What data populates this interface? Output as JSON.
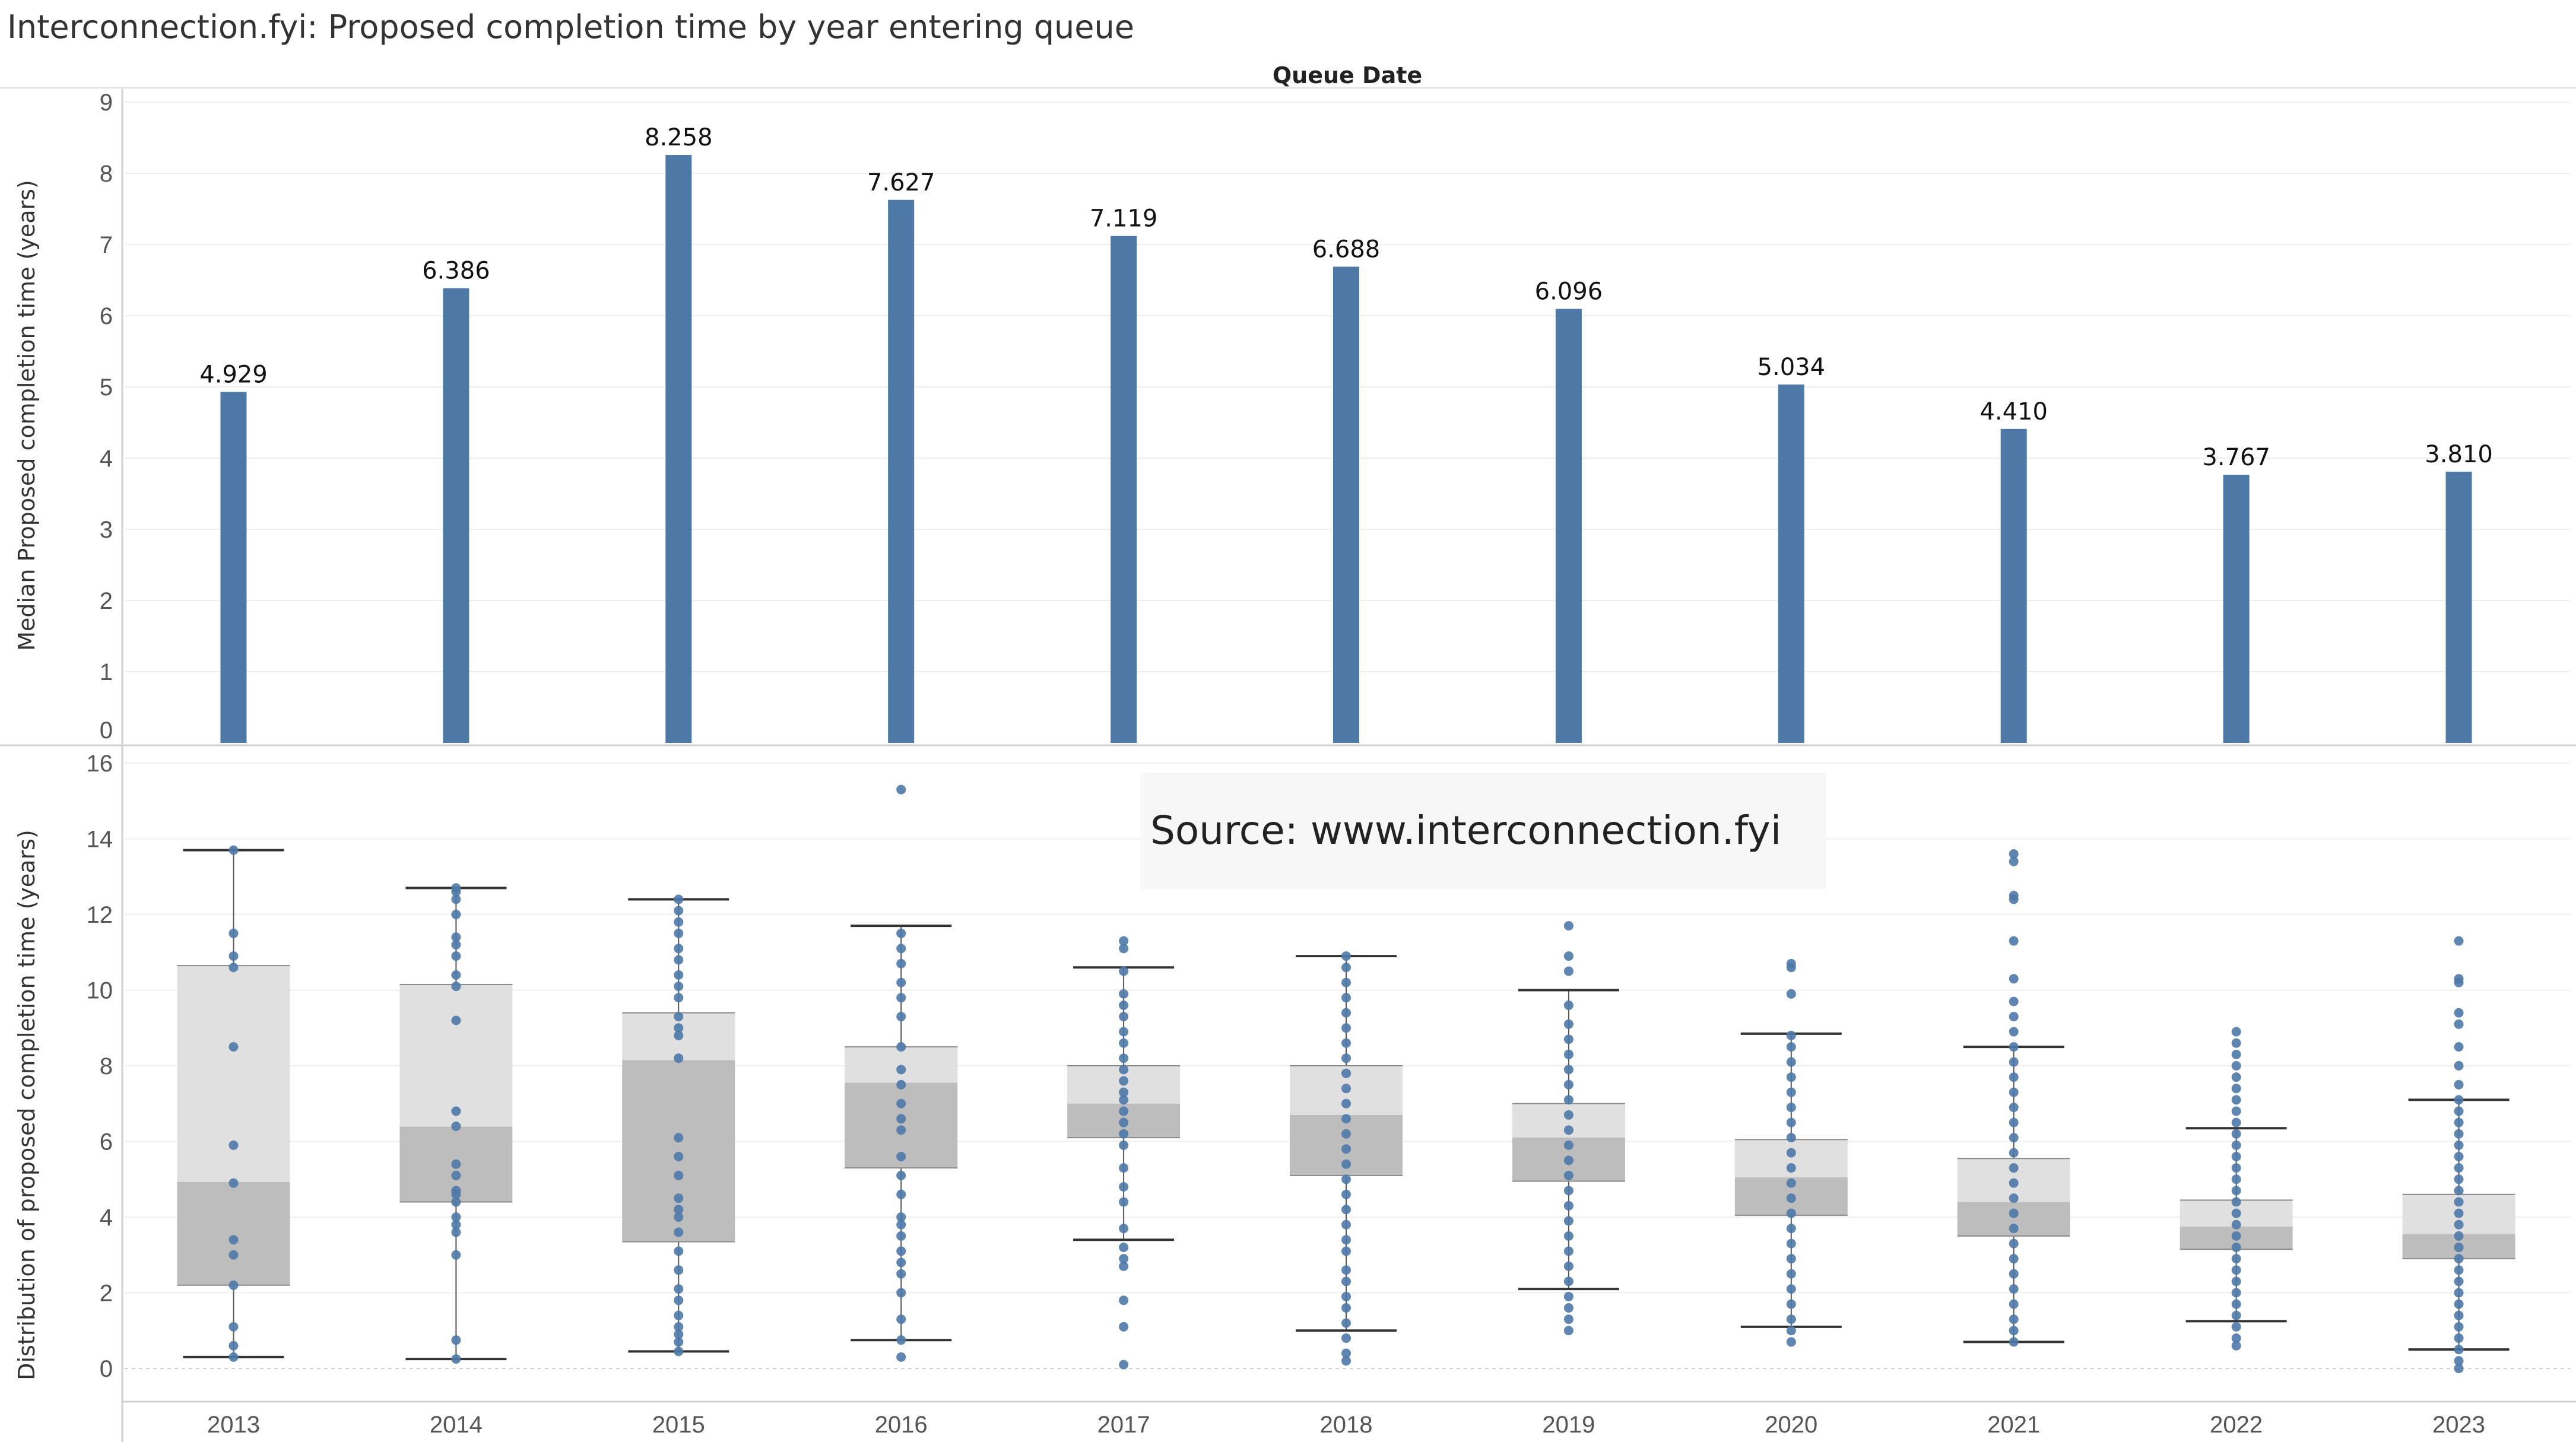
{
  "title": "Interconnection.fyi: Proposed completion time by year entering queue",
  "chart_data": [
    {
      "type": "bar",
      "header": "Queue Date",
      "categories": [
        "2013",
        "2014",
        "2015",
        "2016",
        "2017",
        "2018",
        "2019",
        "2020",
        "2021",
        "2022",
        "2023"
      ],
      "values": [
        4.929,
        6.386,
        8.258,
        7.627,
        7.119,
        6.688,
        6.096,
        5.034,
        4.41,
        3.767,
        3.81
      ],
      "value_labels": [
        "4.929",
        "6.386",
        "8.258",
        "7.627",
        "7.119",
        "6.688",
        "6.096",
        "5.034",
        "4.410",
        "3.767",
        "3.810"
      ],
      "ylabel": "Median Proposed completion time (years)",
      "ylim": [
        0,
        9
      ],
      "yticks": [
        "0",
        "1",
        "2",
        "3",
        "4",
        "5",
        "6",
        "7",
        "8",
        "9"
      ],
      "bar_color": "#4e79a7",
      "grid": true
    },
    {
      "type": "box",
      "categories": [
        "2013",
        "2014",
        "2015",
        "2016",
        "2017",
        "2018",
        "2019",
        "2020",
        "2021",
        "2022",
        "2023"
      ],
      "ylabel": "Distribution of proposed completion time (years)",
      "ylim": [
        0,
        16
      ],
      "yticks": [
        "0",
        "2",
        "4",
        "6",
        "8",
        "10",
        "12",
        "14",
        "16"
      ],
      "boxes": [
        {
          "year": "2013",
          "whisker_low": 0.3,
          "q1": 2.2,
          "median": 4.93,
          "q3": 10.65,
          "whisker_high": 13.7
        },
        {
          "year": "2014",
          "whisker_low": 0.25,
          "q1": 4.4,
          "median": 6.39,
          "q3": 10.15,
          "whisker_high": 12.7
        },
        {
          "year": "2015",
          "whisker_low": 0.45,
          "q1": 3.35,
          "median": 8.15,
          "q3": 9.4,
          "whisker_high": 12.4
        },
        {
          "year": "2016",
          "whisker_low": 0.75,
          "q1": 5.3,
          "median": 7.55,
          "q3": 8.5,
          "whisker_high": 11.7
        },
        {
          "year": "2017",
          "whisker_low": 3.4,
          "q1": 6.1,
          "median": 7.0,
          "q3": 8.0,
          "whisker_high": 10.6
        },
        {
          "year": "2018",
          "whisker_low": 1.0,
          "q1": 5.1,
          "median": 6.7,
          "q3": 8.0,
          "whisker_high": 10.9
        },
        {
          "year": "2019",
          "whisker_low": 2.1,
          "q1": 4.95,
          "median": 6.1,
          "q3": 7.0,
          "whisker_high": 10.0
        },
        {
          "year": "2020",
          "whisker_low": 1.1,
          "q1": 4.05,
          "median": 5.05,
          "q3": 6.05,
          "whisker_high": 8.85
        },
        {
          "year": "2021",
          "whisker_low": 0.7,
          "q1": 3.5,
          "median": 4.4,
          "q3": 5.55,
          "whisker_high": 8.5
        },
        {
          "year": "2022",
          "whisker_low": 1.25,
          "q1": 3.15,
          "median": 3.75,
          "q3": 4.45,
          "whisker_high": 6.35
        },
        {
          "year": "2023",
          "whisker_low": 0.5,
          "q1": 2.9,
          "median": 3.55,
          "q3": 4.6,
          "whisker_high": 7.1
        }
      ],
      "points": [
        [
          0.3,
          0.6,
          1.1,
          2.2,
          3.0,
          3.4,
          4.9,
          5.9,
          8.5,
          10.6,
          10.9,
          11.5,
          13.7
        ],
        [
          0.25,
          0.75,
          3.0,
          3.6,
          3.8,
          4.0,
          4.4,
          4.6,
          4.7,
          5.1,
          5.4,
          6.4,
          6.8,
          9.2,
          10.1,
          10.4,
          10.9,
          11.2,
          11.4,
          12.0,
          12.4,
          12.6,
          12.7
        ],
        [
          0.45,
          0.7,
          0.9,
          1.1,
          1.4,
          1.8,
          2.1,
          2.6,
          3.1,
          3.6,
          4.0,
          4.2,
          4.5,
          5.1,
          5.6,
          6.1,
          8.2,
          8.8,
          9.0,
          9.3,
          9.8,
          10.1,
          10.4,
          10.8,
          11.1,
          11.5,
          11.8,
          12.1,
          12.4
        ],
        [
          0.3,
          0.75,
          1.3,
          2.0,
          2.5,
          2.8,
          3.1,
          3.5,
          3.8,
          4.0,
          4.6,
          5.1,
          5.6,
          6.3,
          6.6,
          7.0,
          7.5,
          7.9,
          8.5,
          9.3,
          9.8,
          10.2,
          10.7,
          11.1,
          11.5,
          15.3
        ],
        [
          0.1,
          1.1,
          1.8,
          2.7,
          2.9,
          3.2,
          3.7,
          4.4,
          4.8,
          5.3,
          5.9,
          6.2,
          6.5,
          6.8,
          7.1,
          7.3,
          7.6,
          7.9,
          8.2,
          8.6,
          8.9,
          9.3,
          9.6,
          9.9,
          10.5,
          11.1,
          11.3
        ],
        [
          0.2,
          0.4,
          0.8,
          1.2,
          1.6,
          1.9,
          2.3,
          2.6,
          3.1,
          3.4,
          3.8,
          4.2,
          4.6,
          5.0,
          5.4,
          5.8,
          6.2,
          6.6,
          7.0,
          7.4,
          7.8,
          8.2,
          8.6,
          9.0,
          9.4,
          9.8,
          10.2,
          10.6,
          10.9
        ],
        [
          1.0,
          1.3,
          1.6,
          1.9,
          2.3,
          2.7,
          3.1,
          3.5,
          3.9,
          4.3,
          4.7,
          5.1,
          5.5,
          5.9,
          6.3,
          6.7,
          7.1,
          7.5,
          7.9,
          8.3,
          8.7,
          9.1,
          9.6,
          10.5,
          10.9,
          11.7
        ],
        [
          0.7,
          1.0,
          1.3,
          1.7,
          2.1,
          2.5,
          2.9,
          3.3,
          3.7,
          4.1,
          4.5,
          4.9,
          5.3,
          5.7,
          6.1,
          6.5,
          6.9,
          7.3,
          7.7,
          8.1,
          8.5,
          8.8,
          9.9,
          10.6,
          10.7
        ],
        [
          0.7,
          1.0,
          1.3,
          1.7,
          2.1,
          2.5,
          2.9,
          3.3,
          3.7,
          4.1,
          4.5,
          4.9,
          5.3,
          5.7,
          6.1,
          6.5,
          6.9,
          7.3,
          7.7,
          8.1,
          8.5,
          8.9,
          9.3,
          9.7,
          10.3,
          11.3,
          12.4,
          12.5,
          13.4,
          13.6
        ],
        [
          0.6,
          0.8,
          1.1,
          1.4,
          1.7,
          2.0,
          2.3,
          2.6,
          2.9,
          3.2,
          3.5,
          3.8,
          4.1,
          4.4,
          4.7,
          5.0,
          5.3,
          5.6,
          5.9,
          6.2,
          6.5,
          6.8,
          7.1,
          7.4,
          7.7,
          8.0,
          8.3,
          8.6,
          8.9
        ],
        [
          0.0,
          0.2,
          0.5,
          0.8,
          1.1,
          1.4,
          1.7,
          2.0,
          2.3,
          2.6,
          2.9,
          3.2,
          3.5,
          3.8,
          4.1,
          4.4,
          4.7,
          5.0,
          5.3,
          5.6,
          5.9,
          6.2,
          6.5,
          6.8,
          7.1,
          7.5,
          8.0,
          8.5,
          9.1,
          9.4,
          10.2,
          10.3,
          11.3
        ]
      ],
      "point_color": "#4e79a7",
      "box_color": "#bdbdbd",
      "box_upper_color": "#e0e0e0",
      "annotation": "Source: www.interconnection.fyi"
    }
  ]
}
